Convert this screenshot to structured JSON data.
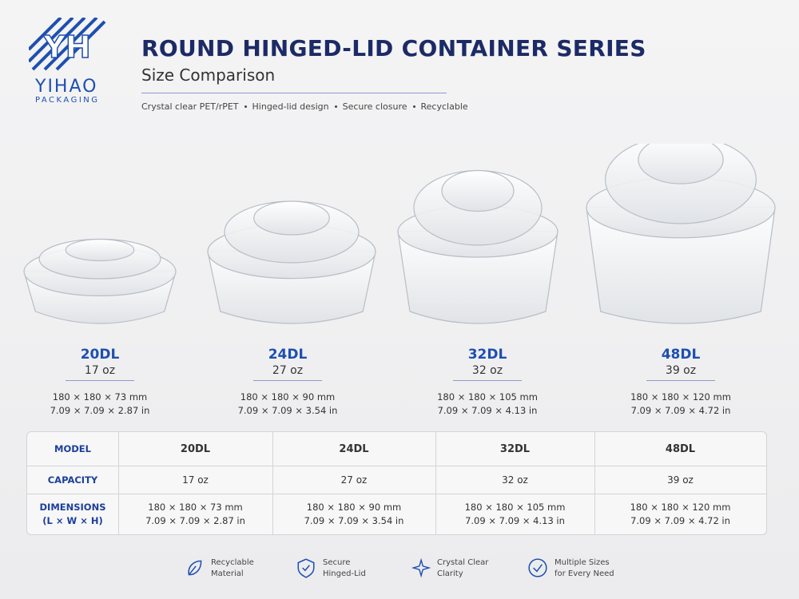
{
  "header": {
    "logo_mark": "YH",
    "logo_name": "YIHAO",
    "logo_sub": "PACKAGING",
    "title": "ROUND HINGED-LID CONTAINER SERIES",
    "subtitle": "Size Comparison",
    "features": [
      "Crystal clear PET/rPET",
      "Hinged-lid design",
      "Secure closure",
      "Recyclable"
    ]
  },
  "products": [
    {
      "model": "20DL",
      "capacity": "17 oz",
      "dims_mm": "180 × 180 × 73 mm",
      "dims_in": "7.09 × 7.09 × 2.87 in"
    },
    {
      "model": "24DL",
      "capacity": "27 oz",
      "dims_mm": "180 × 180 × 90 mm",
      "dims_in": "7.09 × 7.09 × 3.54 in"
    },
    {
      "model": "32DL",
      "capacity": "32 oz",
      "dims_mm": "180 × 180 × 105 mm",
      "dims_in": "7.09 × 7.09 × 4.13 in"
    },
    {
      "model": "48DL",
      "capacity": "39 oz",
      "dims_mm": "180 × 180 × 120 mm",
      "dims_in": "7.09 × 7.09 × 4.72 in"
    }
  ],
  "table": {
    "row_labels": [
      "MODEL",
      "CAPACITY",
      "DIMENSIONS",
      "(L × W × H)"
    ],
    "rows": [
      [
        "20DL",
        "24DL",
        "32DL",
        "48DL"
      ],
      [
        "17 oz",
        "27 oz",
        "32 oz",
        "39 oz"
      ],
      [
        [
          "180 × 180 × 73 mm",
          "7.09 × 7.09 × 2.87 in"
        ],
        [
          "180 × 180 × 90 mm",
          "7.09 × 7.09 × 3.54 in"
        ],
        [
          "180 × 180 × 105 mm",
          "7.09 × 7.09 × 4.13 in"
        ],
        [
          "180 × 180 × 120 mm",
          "7.09 × 7.09 × 4.72 in"
        ]
      ]
    ]
  },
  "badges": [
    [
      "Recyclable",
      "Material"
    ],
    [
      "Secure",
      "Hinged-Lid"
    ],
    [
      "Crystal Clear",
      "Clarity"
    ],
    [
      "Multiple Sizes",
      "for Every Need"
    ]
  ]
}
